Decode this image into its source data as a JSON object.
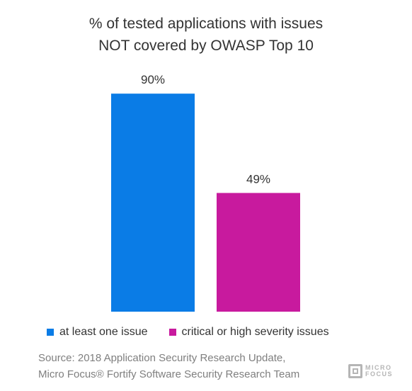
{
  "chart_data": {
    "type": "bar",
    "title": "% of tested applications with issues NOT covered by OWASP Top 10",
    "title_lines": [
      "% of tested applications with issues",
      "NOT covered by OWASP Top 10"
    ],
    "categories": [
      "at least one issue",
      "critical or high severity issues"
    ],
    "values": [
      90,
      49
    ],
    "value_labels": [
      "90%",
      "49%"
    ],
    "colors": [
      "#0a7ce6",
      "#c81a9e"
    ],
    "ylim": [
      0,
      100
    ],
    "grid": false,
    "legend_position": "bottom",
    "xlabel": "",
    "ylabel": ""
  },
  "source": {
    "line1": "Source: 2018 Application Security Research Update,",
    "line2": "Micro Focus® Fortify Software Security Research Team"
  },
  "logo": {
    "line1": "MICRO",
    "line2": "FOCUS"
  }
}
